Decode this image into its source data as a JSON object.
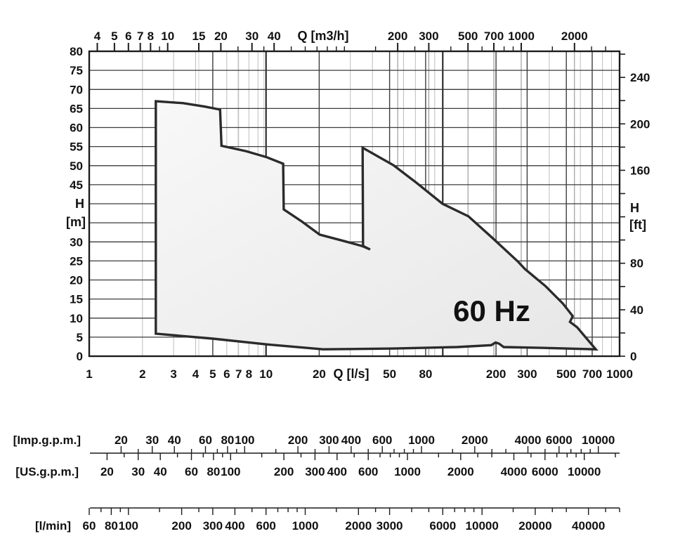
{
  "chart_data": {
    "type": "area",
    "title": "60 Hz",
    "description": "Pump performance range envelope, head H versus flow Q, logarithmic flow axis",
    "colors": {
      "frame": "#1c1c1c",
      "grid_strong": "#3c3c3c",
      "grid_medium": "#8a8a8a",
      "grid_minor": "#bdbdbd",
      "grid_light": "#cfcfcf",
      "envelope_stroke": "#2b2b2b",
      "envelope_fill_light": "#f8f8f8",
      "envelope_fill_dark": "#e7e7e7",
      "text": "#111111"
    },
    "axes": {
      "top": {
        "unit": "Q [m3/h]",
        "factor_from_l_s": 3.6,
        "labeled": [
          4,
          5,
          6,
          7,
          8,
          10,
          15,
          20,
          30,
          40,
          200,
          300,
          500,
          700,
          1000,
          2000
        ],
        "minor": [
          9,
          25,
          35,
          50,
          60,
          70,
          80,
          90,
          100,
          150,
          250,
          400,
          600,
          800,
          900,
          1500,
          2500,
          3000
        ]
      },
      "bottom": {
        "unit": "Q [l/s]",
        "range": [
          1,
          1000
        ],
        "scale": "log",
        "labeled": [
          1,
          2,
          3,
          4,
          5,
          6,
          7,
          8,
          10,
          20,
          50,
          80,
          200,
          300,
          500,
          700,
          1000
        ]
      },
      "left": {
        "unit_lines": [
          "H",
          "[m]"
        ],
        "range": [
          0,
          80
        ],
        "scale": "linear",
        "labeled": [
          80,
          75,
          70,
          65,
          60,
          55,
          50,
          45,
          30,
          25,
          20,
          15,
          10,
          5,
          0
        ]
      },
      "right": {
        "unit_lines": [
          "H",
          "[ft]"
        ],
        "labeled": [
          240,
          200,
          160,
          80,
          40,
          0
        ],
        "tick_step_ft": 20,
        "tick_max_ft": 260,
        "ft_per_m": 3.28084
      }
    },
    "grid": {
      "horizontal_m": [
        5,
        10,
        15,
        20,
        25,
        30,
        35,
        40,
        45,
        50,
        55,
        60,
        65,
        70,
        75
      ],
      "vertical_l_s_decade": [
        10,
        100
      ],
      "vertical_l_s_strong": [
        5,
        20,
        50,
        80,
        200,
        300,
        500,
        700
      ],
      "vertical_l_s_minor": [
        2,
        3,
        4,
        6,
        7,
        8,
        9,
        30,
        40,
        60,
        70,
        90,
        400,
        600,
        800,
        900
      ],
      "vertical_m3h_medium": [
        200,
        300,
        500,
        700,
        1000,
        2000
      ],
      "vertical_m3h_light": [
        15,
        25,
        35
      ]
    },
    "envelope": {
      "series_name": "60 Hz operating range",
      "units": [
        "Q l/s",
        "H m"
      ],
      "points": [
        [
          2.38,
          5.9
        ],
        [
          2.38,
          66.9
        ],
        [
          3.4,
          66.4
        ],
        [
          4.5,
          65.5
        ],
        [
          5.5,
          64.7
        ],
        [
          5.6,
          55.2
        ],
        [
          7.7,
          53.8
        ],
        [
          10.1,
          52.2
        ],
        [
          12.5,
          50.5
        ],
        [
          12.6,
          38.5
        ],
        [
          16,
          35.3
        ],
        [
          20.1,
          31.9
        ],
        [
          27.7,
          30.2
        ],
        [
          35,
          28.9
        ],
        [
          38.8,
          28.0
        ],
        [
          35.4,
          28.9
        ],
        [
          35.2,
          54.7
        ],
        [
          52.6,
          50.1
        ],
        [
          71,
          45.5
        ],
        [
          99.6,
          40.0
        ],
        [
          139.6,
          36.7
        ],
        [
          189,
          31.2
        ],
        [
          265,
          24.9
        ],
        [
          291,
          22.9
        ],
        [
          381,
          18.4
        ],
        [
          478,
          13.8
        ],
        [
          543,
          10.5
        ],
        [
          524,
          9.0
        ],
        [
          575,
          7.6
        ],
        [
          733,
          1.8
        ],
        [
          358,
          2.2
        ],
        [
          221,
          2.4
        ],
        [
          208,
          3.3
        ],
        [
          199,
          3.6
        ],
        [
          188,
          2.9
        ],
        [
          120,
          2.4
        ],
        [
          52.7,
          2.0
        ],
        [
          21,
          1.8
        ],
        [
          10.1,
          3.1
        ],
        [
          5.0,
          4.6
        ],
        [
          2.38,
          5.9
        ]
      ]
    },
    "scales": {
      "imp_gpm": {
        "label": "[Imp.g.p.m.]",
        "per_l_s": 13.198,
        "tick_min": 20,
        "tick_max": 12000,
        "labeled": [
          20,
          30,
          40,
          60,
          80,
          100,
          200,
          300,
          400,
          600,
          1000,
          2000,
          4000,
          6000,
          10000
        ]
      },
      "us_gpm": {
        "label": "[US.g.p.m.]",
        "per_l_s": 15.85,
        "tick_min": 20,
        "tick_max": 15000,
        "labeled": [
          20,
          30,
          40,
          60,
          80,
          100,
          200,
          300,
          400,
          600,
          1000,
          2000,
          4000,
          6000,
          10000
        ]
      },
      "l_min": {
        "label": "[l/min]",
        "per_l_s": 60,
        "tick_min": 60,
        "tick_max": 60000,
        "labeled": [
          60,
          80,
          100,
          200,
          300,
          400,
          600,
          1000,
          2000,
          3000,
          6000,
          10000,
          20000,
          40000
        ]
      }
    }
  }
}
